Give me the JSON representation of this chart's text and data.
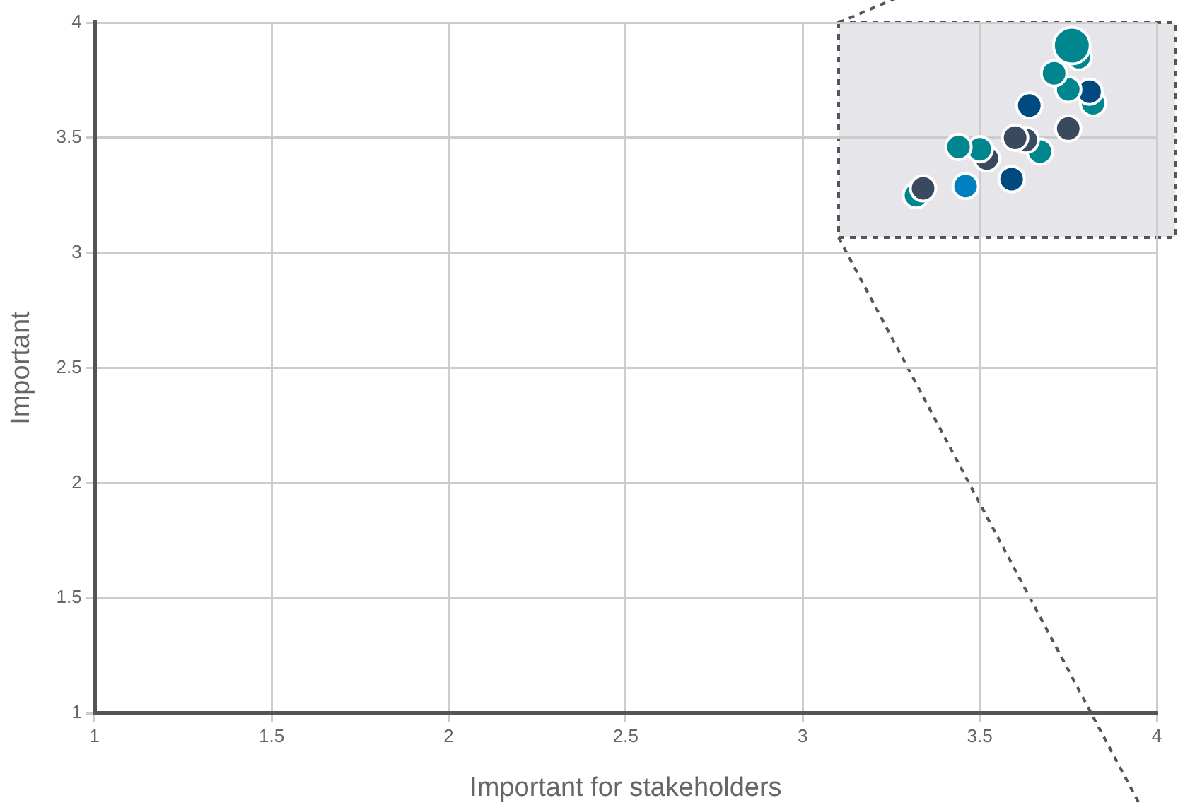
{
  "chart_data": {
    "type": "bubble",
    "xlabel": "Important for stakeholders",
    "ylabel": "Important",
    "x": [
      3.76,
      3.78,
      3.71,
      3.75,
      3.81,
      3.82,
      3.64,
      3.75,
      3.6,
      3.63,
      3.67,
      3.44,
      3.5,
      3.52,
      3.59,
      3.46,
      3.34,
      3.32
    ],
    "values": [
      3.9,
      3.85,
      3.78,
      3.71,
      3.7,
      3.65,
      3.64,
      3.54,
      3.5,
      3.49,
      3.44,
      3.46,
      3.45,
      3.41,
      3.32,
      3.29,
      3.28,
      3.25
    ],
    "sizes": [
      1,
      0.48,
      0.48,
      0.48,
      0.48,
      0.48,
      0.48,
      0.48,
      0.48,
      0.48,
      0.48,
      0.48,
      0.48,
      0.48,
      0.48,
      0.48,
      0.48,
      0.48
    ],
    "colors": [
      "#00868f",
      "#00868f",
      "#00868f",
      "#00868f",
      "#004a80",
      "#00868f",
      "#004a80",
      "#3a4a5e",
      "#3a4a5e",
      "#3a4a5e",
      "#00868f",
      "#00868f",
      "#00868f",
      "#3a4a5e",
      "#004a80",
      "#0080c0",
      "#3a4a5e",
      "#00868f"
    ],
    "xlim": [
      1,
      4
    ],
    "xticks": [
      1,
      1.5,
      2,
      2.5,
      3,
      3.5,
      4
    ],
    "ylim": [
      1,
      4
    ],
    "yticks": [
      1,
      1.5,
      2,
      2.5,
      3,
      3.5,
      4
    ],
    "grid": true,
    "legend": false
  }
}
